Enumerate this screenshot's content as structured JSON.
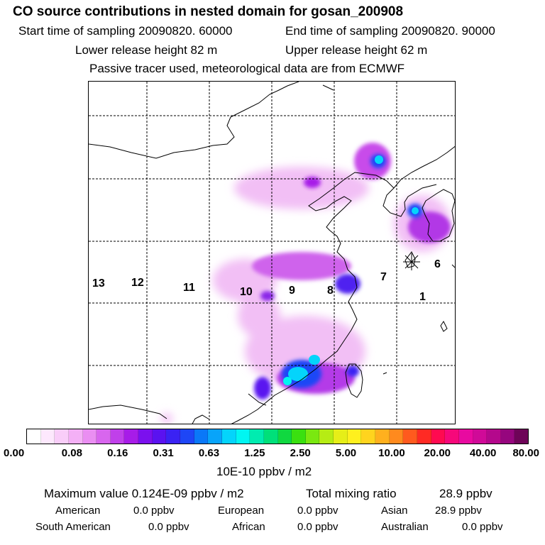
{
  "header": {
    "title": "CO  source contributions in nested domain for gosan_200908",
    "start_label": "Start time of sampling 20090820. 60000",
    "end_label": "End time of sampling 20090820. 90000",
    "lower_label": "Lower release height   82 m",
    "upper_label": "Upper release height   62 m",
    "info_line": "Passive tracer used, meteorological data are from ECMWF"
  },
  "map": {
    "region_numbers": [
      "13",
      "12",
      "11",
      "10",
      "9",
      "8",
      "7",
      "6",
      "1"
    ],
    "receptor_marker": "receptor-star"
  },
  "colorbar": {
    "colors": [
      "#ffffff",
      "#fde8fd",
      "#f9cdf9",
      "#f4b0f6",
      "#ea8ef2",
      "#d866ee",
      "#c040ea",
      "#a71ce8",
      "#7b10ee",
      "#5a12f0",
      "#3a22f3",
      "#1e46f6",
      "#0a78f8",
      "#08a4fa",
      "#04d4fb",
      "#00f6f2",
      "#00ecb0",
      "#00e07a",
      "#10d840",
      "#3ae010",
      "#7ae810",
      "#b6ec14",
      "#e6ee18",
      "#fff01e",
      "#ffd41e",
      "#ffb01e",
      "#ff8a1e",
      "#ff5a1e",
      "#ff2a24",
      "#ff0a50",
      "#f6087a",
      "#e80aa0",
      "#d00a98",
      "#b4088c",
      "#96067e",
      "#6e0458"
    ],
    "tick_labels": [
      "0.00",
      "0.08",
      "0.16",
      "0.31",
      "0.63",
      "1.25",
      "2.50",
      "5.00",
      "10.00",
      "20.00",
      "40.00",
      "80.00"
    ],
    "unit": "10E-10 ppbv / m2"
  },
  "stats": {
    "max_label": "Maximum value  0.124E-09 ppbv / m2",
    "total_label": "Total mixing ratio",
    "total_value": "28.9 ppbv",
    "rows": [
      {
        "label": "American",
        "value": "0.0 ppbv"
      },
      {
        "label": "European",
        "value": "0.0 ppbv"
      },
      {
        "label": "Asian",
        "value": "28.9 ppbv"
      },
      {
        "label": "South American",
        "value": "0.0 ppbv"
      },
      {
        "label": "African",
        "value": "0.0 ppbv"
      },
      {
        "label": "Australian",
        "value": "0.0 ppbv"
      }
    ]
  }
}
